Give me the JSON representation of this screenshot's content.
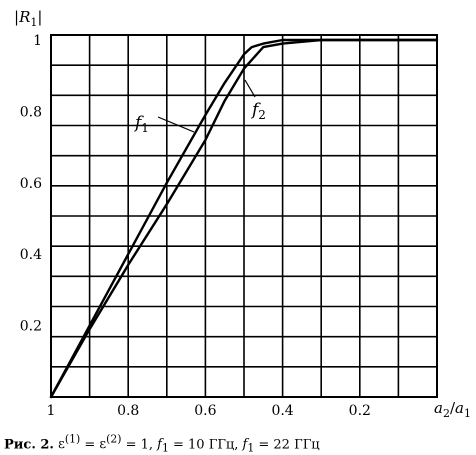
{
  "chart_data": {
    "type": "line",
    "title": "",
    "ylabel": "|R1|",
    "xlabel": "a2/a1",
    "xlim": [
      1,
      0
    ],
    "ylim": [
      0,
      1.05
    ],
    "x_ticks": [
      "1",
      "0.8",
      "0.6",
      "0.4",
      "0.2"
    ],
    "y_ticks": [
      "0.2",
      "0.4",
      "0.6",
      "0.8",
      "1"
    ],
    "grid": true,
    "series": [
      {
        "name": "f1",
        "x": [
          1.0,
          0.9,
          0.8,
          0.7,
          0.6,
          0.55,
          0.5,
          0.48,
          0.45,
          0.4,
          0.38,
          0.35,
          0.3,
          0.2,
          0.1,
          0.0
        ],
        "y": [
          0.0,
          0.2,
          0.4,
          0.6,
          0.79,
          0.88,
          0.96,
          0.98,
          0.99,
          1.0,
          1.0,
          1.0,
          1.0,
          1.0,
          1.0,
          1.0
        ]
      },
      {
        "name": "f2",
        "x": [
          1.0,
          0.9,
          0.8,
          0.7,
          0.6,
          0.55,
          0.5,
          0.45,
          0.4,
          0.35,
          0.3,
          0.2,
          0.1,
          0.0
        ],
        "y": [
          0.0,
          0.19,
          0.37,
          0.54,
          0.72,
          0.83,
          0.92,
          0.98,
          0.99,
          0.995,
          1.0,
          1.0,
          1.0,
          1.0
        ]
      }
    ],
    "curve_labels": [
      {
        "series": "f1",
        "base": "f",
        "sub": "1"
      },
      {
        "series": "f2",
        "base": "f",
        "sub": "2"
      }
    ]
  },
  "caption": {
    "label": "Рис. 2.",
    "eps1_base": "ε",
    "eps1_sup": "(1)",
    "eq1": " = ",
    "eps2_base": "ε",
    "eps2_sup": "(2)",
    "eq2": " = 1,   ",
    "f1_base": "f",
    "f1_sub": "1",
    "f1_value": " = 10  ГГц,  ",
    "f2_base": "f",
    "f2_sub": "1",
    "f2_value": " = 22  ГГц"
  }
}
